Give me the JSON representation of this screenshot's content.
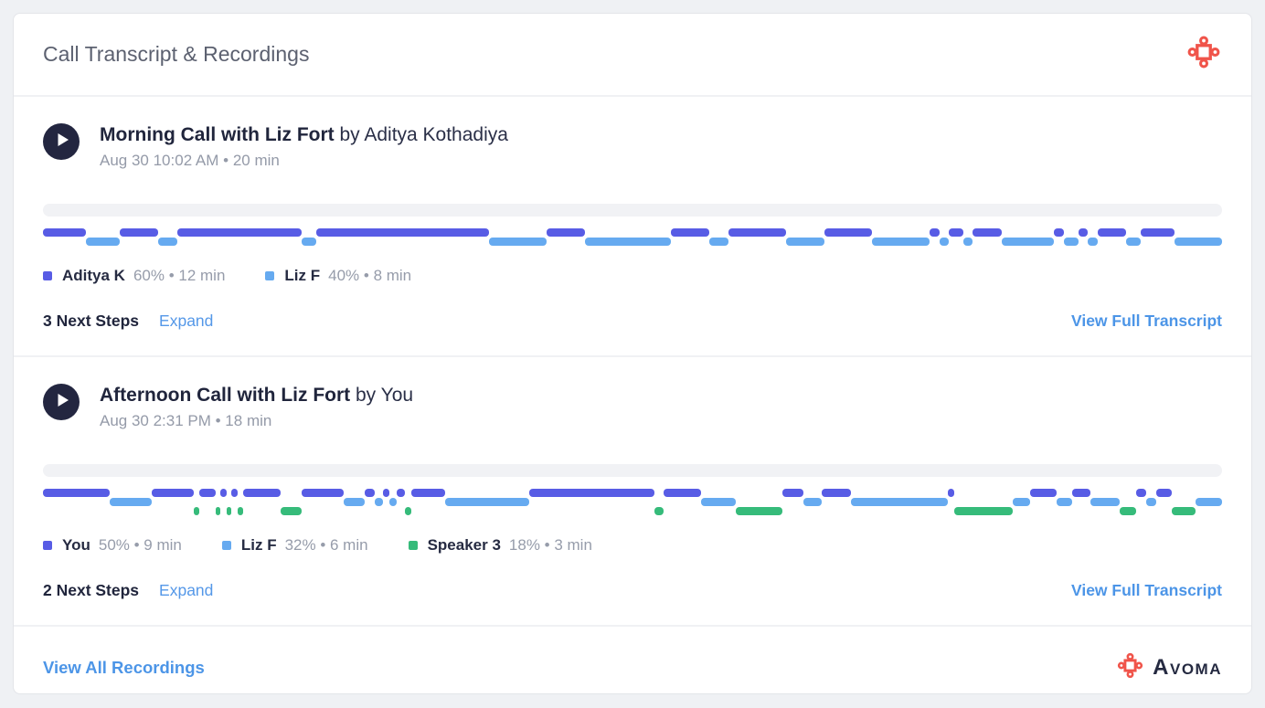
{
  "header": {
    "title": "Call Transcript & Recordings",
    "logo_icon": "avoma-mark-icon"
  },
  "colors": {
    "brand_red": "#f0544a",
    "link_blue": "#4c95e7",
    "play_button": "#232640",
    "speaker_purple": "#585ce5",
    "speaker_blue": "#66aaf0",
    "speaker_green": "#36bb7a",
    "empty_track": "#f1f2f5"
  },
  "recordings": [
    {
      "title": "Morning Call with Liz Fort",
      "byline": "by Aditya Kothadiya",
      "meta": "Aug 30 10:02 AM • 20 min",
      "play_icon": "play-icon",
      "speakers": [
        {
          "name": "Aditya K",
          "stats": "60% • 12 min",
          "color": "#585ce5"
        },
        {
          "name": "Liz F",
          "stats": "40% • 8 min",
          "color": "#66aaf0"
        }
      ],
      "segments": [
        [
          0,
          4.5
        ],
        [
          1,
          3.5
        ],
        [
          0,
          4
        ],
        [
          1,
          2
        ],
        [
          0,
          13
        ],
        [
          1,
          1.5
        ],
        [
          0,
          18
        ],
        [
          1,
          6
        ],
        [
          0,
          4
        ],
        [
          1,
          9
        ],
        [
          0,
          4
        ],
        [
          1,
          2
        ],
        [
          0,
          6
        ],
        [
          1,
          4
        ],
        [
          0,
          5
        ],
        [
          1,
          6
        ],
        [
          0,
          1
        ],
        [
          1,
          1
        ],
        [
          0,
          1.5
        ],
        [
          1,
          1
        ],
        [
          0,
          3
        ],
        [
          1,
          5.5
        ],
        [
          0,
          1
        ],
        [
          1,
          1.5
        ],
        [
          0,
          1
        ],
        [
          1,
          1
        ],
        [
          0,
          3
        ],
        [
          1,
          1.5
        ],
        [
          0,
          3.5
        ],
        [
          1,
          5
        ]
      ],
      "next_steps_label": "3 Next Steps",
      "expand_label": "Expand",
      "transcript_link_label": "View Full Transcript"
    },
    {
      "title": "Afternoon Call with Liz Fort",
      "byline": "by You",
      "meta": "Aug 30 2:31 PM • 18 min",
      "play_icon": "play-icon",
      "speakers": [
        {
          "name": "You",
          "stats": "50% • 9 min",
          "color": "#585ce5"
        },
        {
          "name": "Liz F",
          "stats": "32% • 6 min",
          "color": "#66aaf0"
        },
        {
          "name": "Speaker 3",
          "stats": "18% • 3 min",
          "color": "#36bb7a"
        }
      ],
      "segments": [
        [
          0,
          8
        ],
        [
          1,
          5
        ],
        [
          0,
          5
        ],
        [
          2,
          0.6
        ],
        [
          0,
          2
        ],
        [
          2,
          0.5
        ],
        [
          0,
          0.8
        ],
        [
          2,
          0.5
        ],
        [
          0,
          0.8
        ],
        [
          2,
          0.6
        ],
        [
          0,
          4.5
        ],
        [
          2,
          2.5
        ],
        [
          0,
          5
        ],
        [
          1,
          2.5
        ],
        [
          0,
          1.2
        ],
        [
          1,
          1
        ],
        [
          0,
          0.8
        ],
        [
          1,
          0.8
        ],
        [
          0,
          1
        ],
        [
          2,
          0.8
        ],
        [
          0,
          4
        ],
        [
          1,
          10
        ],
        [
          0,
          15
        ],
        [
          2,
          1
        ],
        [
          0,
          4.5
        ],
        [
          1,
          4.2
        ],
        [
          2,
          5.5
        ],
        [
          0,
          2.5
        ],
        [
          1,
          2.2
        ],
        [
          0,
          3.5
        ],
        [
          1,
          11.5
        ],
        [
          0,
          0.8
        ],
        [
          2,
          7
        ],
        [
          1,
          2
        ],
        [
          0,
          3.2
        ],
        [
          1,
          1.8
        ],
        [
          0,
          2.2
        ],
        [
          1,
          3.5
        ],
        [
          2,
          2
        ],
        [
          0,
          1.2
        ],
        [
          1,
          1.2
        ],
        [
          0,
          1.8
        ],
        [
          2,
          2.8
        ],
        [
          1,
          3.2
        ]
      ],
      "next_steps_label": "2 Next Steps",
      "expand_label": "Expand",
      "transcript_link_label": "View Full Transcript"
    }
  ],
  "footer": {
    "view_all_label": "View All Recordings",
    "brand_name": "Avoma",
    "brand_icon": "avoma-mark-icon"
  }
}
